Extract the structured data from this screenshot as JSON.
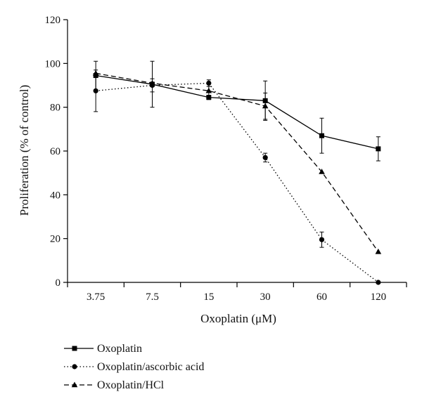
{
  "chart_data": {
    "type": "line",
    "title": "",
    "xlabel": "Oxoplatin (μM)",
    "ylabel": "Proliferation (% of control)",
    "categories": [
      "3.75",
      "7.5",
      "15",
      "30",
      "60",
      "120"
    ],
    "ylim": [
      0,
      120
    ],
    "yticks": [
      0,
      20,
      40,
      60,
      80,
      100,
      120
    ],
    "grid": false,
    "legend_position": "bottom-left",
    "series": [
      {
        "name": "Oxoplatin",
        "line_style": "solid",
        "marker": "square",
        "values": [
          94.5,
          90.5,
          84.5,
          83,
          67,
          61
        ],
        "errors": [
          6.5,
          10.5,
          1,
          9,
          8,
          5.5
        ]
      },
      {
        "name": "Oxoplatin/ascorbic acid",
        "line_style": "dotted",
        "marker": "circle",
        "values": [
          87.5,
          90,
          91,
          57,
          19.5,
          0
        ],
        "errors": [
          9.5,
          3,
          1.5,
          2,
          3.5,
          0
        ]
      },
      {
        "name": "Oxoplatin/HCl",
        "line_style": "dashed",
        "marker": "triangle",
        "values": [
          95.5,
          91,
          87.5,
          80.5,
          50.5,
          14
        ],
        "errors": [
          0,
          0,
          2,
          6,
          0,
          0
        ]
      }
    ]
  }
}
